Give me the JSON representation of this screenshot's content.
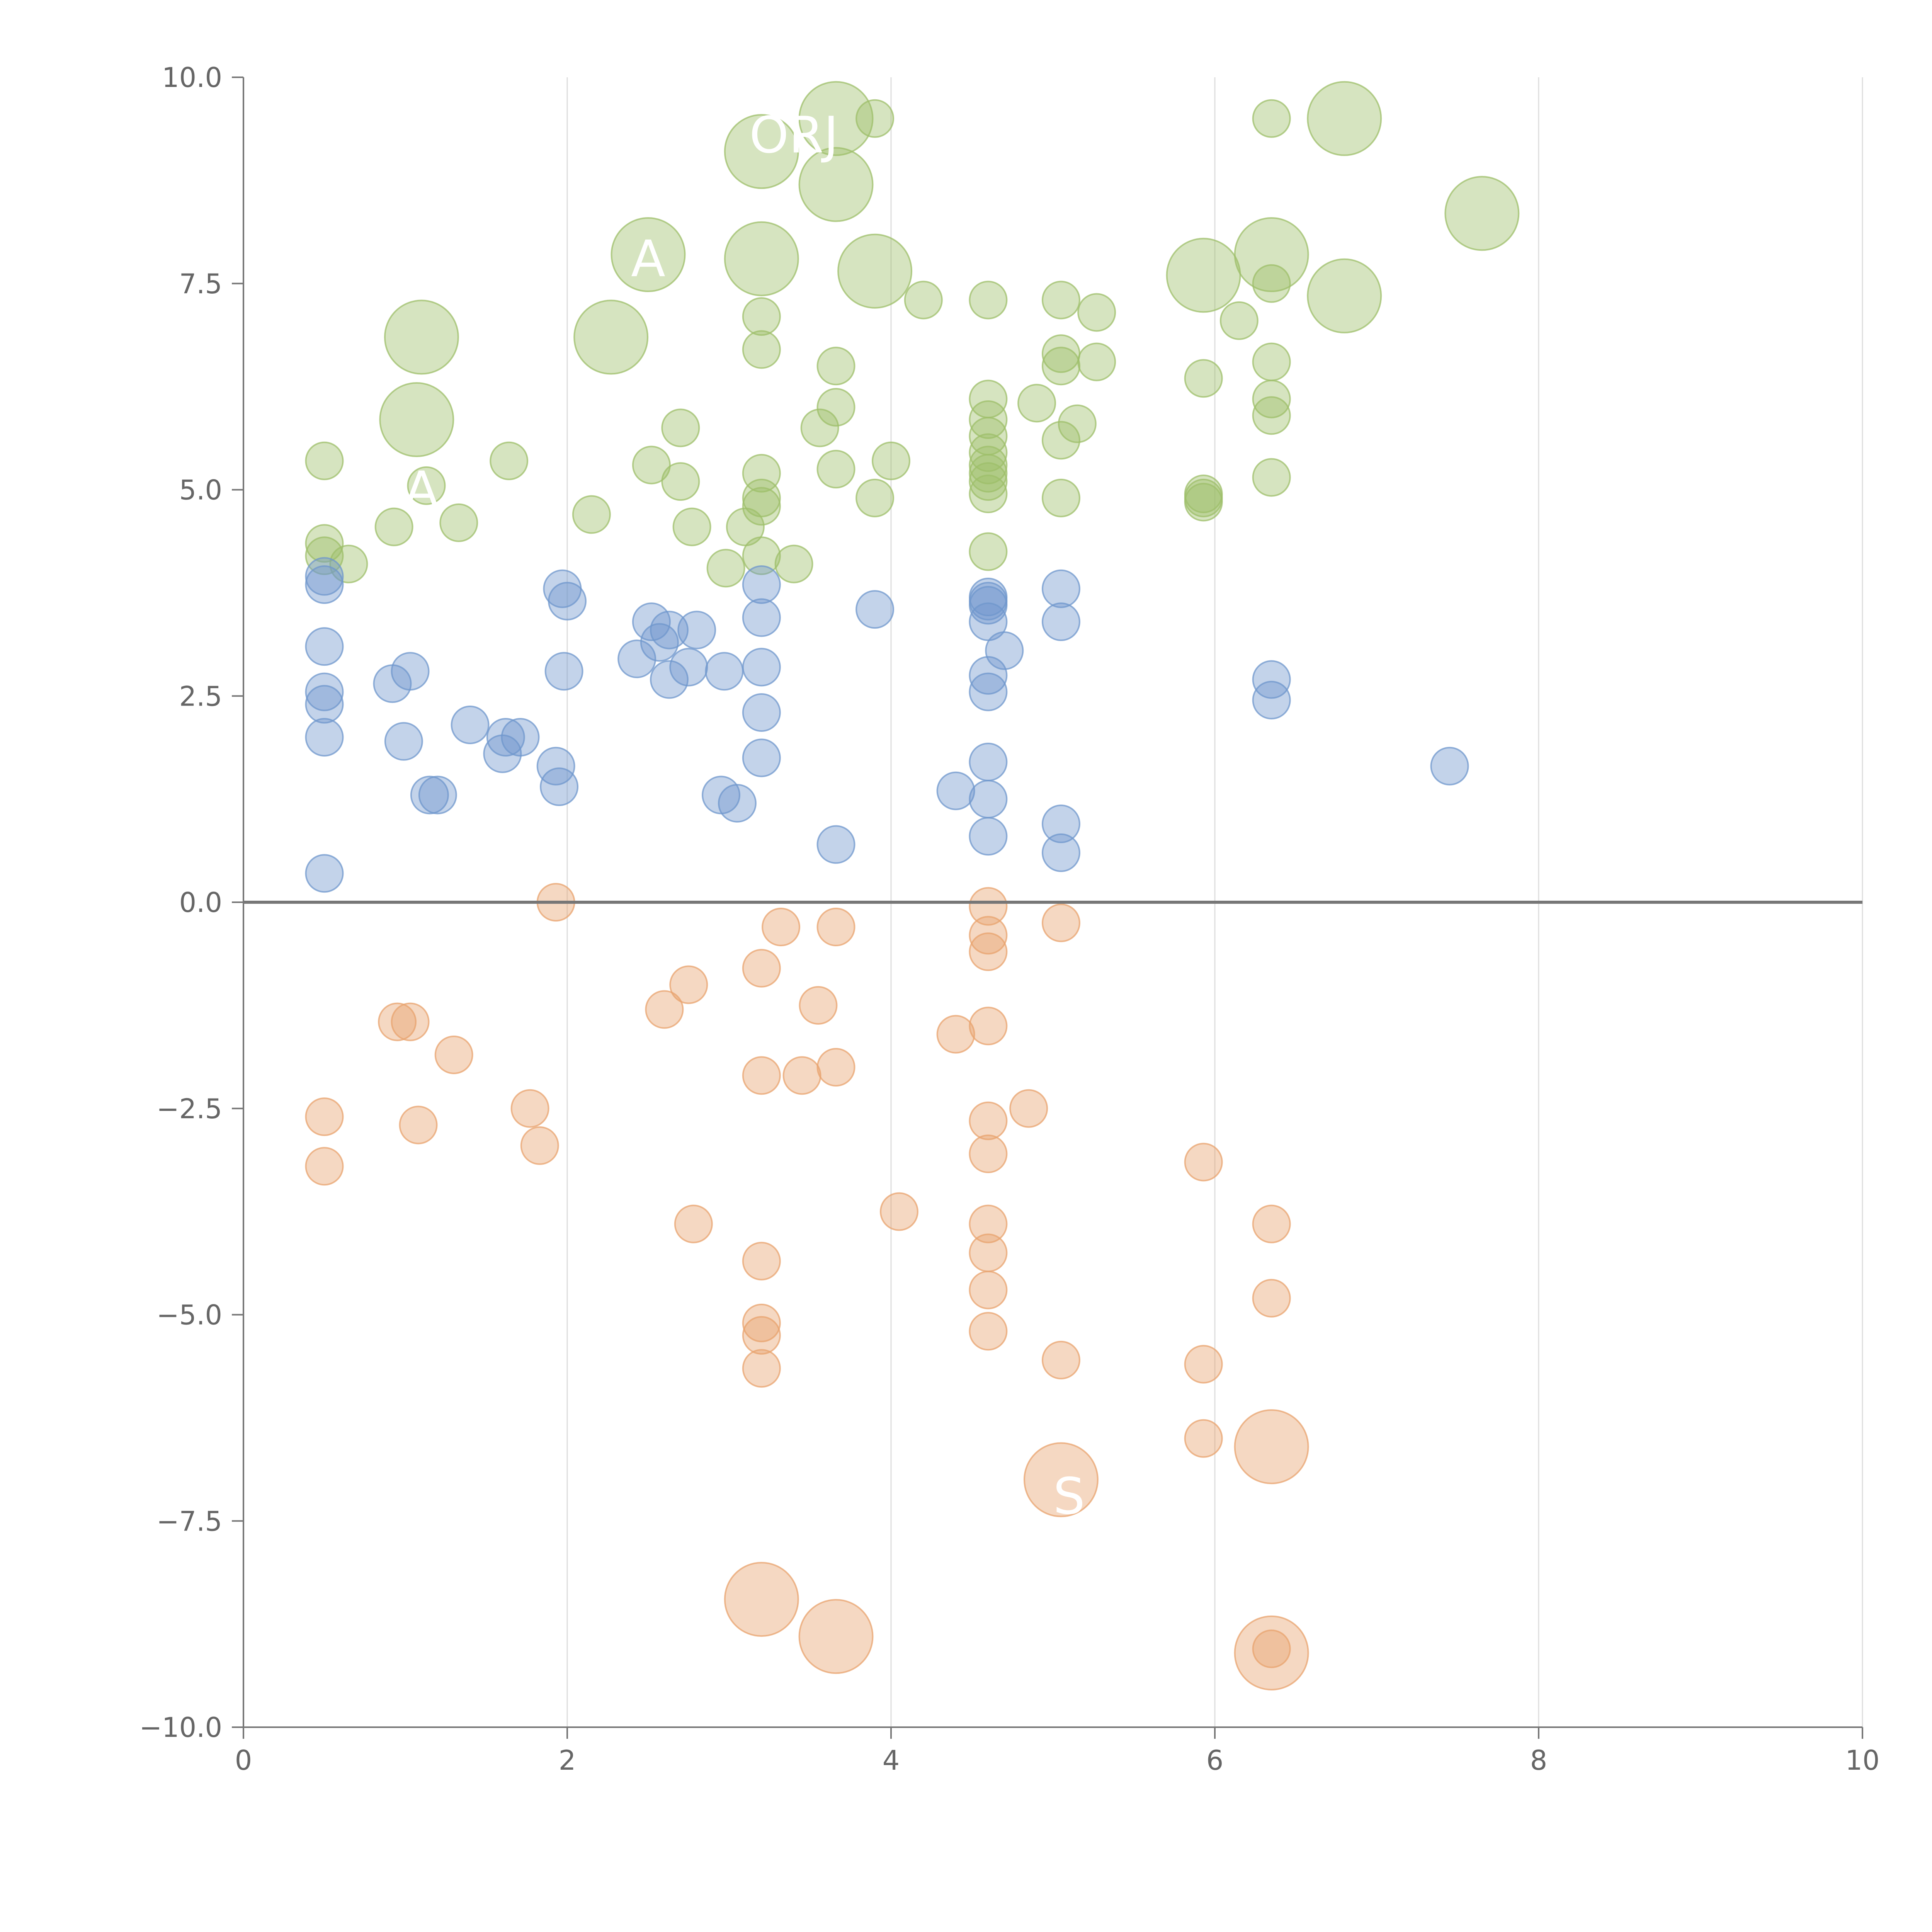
{
  "chart_data": {
    "type": "scatter",
    "title": "",
    "xlabel": "",
    "ylabel": "",
    "xlim": [
      0,
      10
    ],
    "ylim": [
      -10,
      10
    ],
    "x_ticks": [
      "0",
      "2",
      "4",
      "6",
      "8",
      "10"
    ],
    "y_ticks": [
      "10.0",
      "7.5",
      "5.0",
      "2.5",
      "0.0",
      "−2.5",
      "−5.0",
      "−7.5",
      "−10.0"
    ],
    "x_tick_values": [
      0,
      2,
      4,
      6,
      8,
      10
    ],
    "y_tick_values": [
      10,
      7.5,
      5,
      2.5,
      0,
      -2.5,
      -5,
      -7.5,
      -10
    ],
    "grid": "vertical",
    "zero_line": true,
    "series": [
      {
        "color": "#9dbf6a",
        "points": [
          [
            3.66,
            9.5,
            2
          ],
          [
            3.9,
            9.5,
            1
          ],
          [
            3.2,
            9.1,
            2
          ],
          [
            3.66,
            8.7,
            2
          ],
          [
            6.35,
            9.5,
            1
          ],
          [
            6.8,
            9.5,
            2
          ],
          [
            7.65,
            8.35,
            2
          ],
          [
            2.5,
            7.85,
            2
          ],
          [
            3.2,
            7.8,
            2
          ],
          [
            3.9,
            7.65,
            2
          ],
          [
            4.2,
            7.3,
            1
          ],
          [
            4.6,
            7.3,
            1
          ],
          [
            5.05,
            7.3,
            1
          ],
          [
            5.27,
            7.15,
            1
          ],
          [
            5.93,
            7.6,
            2
          ],
          [
            6.35,
            7.85,
            2
          ],
          [
            6.35,
            7.5,
            1
          ],
          [
            6.8,
            7.35,
            2
          ],
          [
            6.15,
            7.05,
            1
          ],
          [
            1.1,
            6.85,
            2
          ],
          [
            2.27,
            6.85,
            2
          ],
          [
            3.2,
            7.1,
            1
          ],
          [
            3.2,
            6.7,
            1
          ],
          [
            3.66,
            6.5,
            1
          ],
          [
            3.66,
            6.0,
            1
          ],
          [
            3.56,
            5.75,
            1
          ],
          [
            4.6,
            6.1,
            1
          ],
          [
            4.6,
            5.85,
            1
          ],
          [
            4.6,
            5.65,
            1
          ],
          [
            4.6,
            5.45,
            1
          ],
          [
            4.6,
            5.3,
            1
          ],
          [
            4.6,
            5.2,
            1
          ],
          [
            4.6,
            5.1,
            1
          ],
          [
            4.6,
            4.95,
            1
          ],
          [
            4.9,
            6.05,
            1
          ],
          [
            5.05,
            6.65,
            1
          ],
          [
            5.05,
            6.5,
            1
          ],
          [
            5.05,
            5.6,
            1
          ],
          [
            5.15,
            5.8,
            1
          ],
          [
            5.27,
            6.55,
            1
          ],
          [
            5.93,
            6.35,
            1
          ],
          [
            5.93,
            4.95,
            1
          ],
          [
            5.93,
            4.9,
            1
          ],
          [
            5.93,
            4.85,
            1
          ],
          [
            6.35,
            6.55,
            1
          ],
          [
            6.35,
            6.1,
            1
          ],
          [
            6.35,
            5.9,
            1
          ],
          [
            6.35,
            5.15,
            1
          ],
          [
            1.07,
            5.85,
            2
          ],
          [
            0.5,
            5.35,
            1
          ],
          [
            1.13,
            5.05,
            1
          ],
          [
            1.64,
            5.35,
            1
          ],
          [
            2.52,
            5.3,
            1
          ],
          [
            2.7,
            5.75,
            1
          ],
          [
            2.7,
            5.1,
            1
          ],
          [
            3.66,
            5.25,
            1
          ],
          [
            4.0,
            5.35,
            1
          ],
          [
            3.2,
            5.2,
            1
          ],
          [
            3.2,
            4.9,
            1
          ],
          [
            3.2,
            4.8,
            1
          ],
          [
            3.9,
            4.9,
            1
          ],
          [
            0.5,
            4.35,
            1
          ],
          [
            0.5,
            4.2,
            1
          ],
          [
            0.65,
            4.1,
            1
          ],
          [
            0.93,
            4.55,
            1
          ],
          [
            1.33,
            4.6,
            1
          ],
          [
            2.15,
            4.7,
            1
          ],
          [
            2.77,
            4.55,
            1
          ],
          [
            3.1,
            4.55,
            1
          ],
          [
            2.98,
            4.05,
            1
          ],
          [
            3.2,
            4.2,
            1
          ],
          [
            3.4,
            4.1,
            1
          ],
          [
            4.6,
            4.25,
            1
          ],
          [
            5.05,
            4.9,
            1
          ]
        ]
      },
      {
        "color": "#6f97cc",
        "points": [
          [
            0.5,
            3.95,
            1
          ],
          [
            0.5,
            3.85,
            1
          ],
          [
            0.5,
            3.1,
            1
          ],
          [
            0.5,
            2.55,
            1
          ],
          [
            0.5,
            2.4,
            1
          ],
          [
            0.5,
            2.0,
            1
          ],
          [
            0.5,
            0.35,
            1
          ],
          [
            0.92,
            2.65,
            1
          ],
          [
            1.03,
            2.8,
            1
          ],
          [
            0.99,
            1.95,
            1
          ],
          [
            1.15,
            1.3,
            1
          ],
          [
            1.2,
            1.3,
            1
          ],
          [
            1.4,
            2.15,
            1
          ],
          [
            1.6,
            1.8,
            1
          ],
          [
            1.62,
            2.0,
            1
          ],
          [
            1.71,
            2.0,
            1
          ],
          [
            1.93,
            1.65,
            1
          ],
          [
            1.95,
            1.4,
            1
          ],
          [
            1.97,
            3.8,
            1
          ],
          [
            2.0,
            3.65,
            1
          ],
          [
            1.98,
            2.8,
            1
          ],
          [
            2.43,
            2.95,
            1
          ],
          [
            2.52,
            3.4,
            1
          ],
          [
            2.57,
            3.15,
            1
          ],
          [
            2.63,
            3.3,
            1
          ],
          [
            2.63,
            2.7,
            1
          ],
          [
            2.75,
            2.85,
            1
          ],
          [
            2.8,
            3.3,
            1
          ],
          [
            2.97,
            2.8,
            1
          ],
          [
            2.95,
            1.3,
            1
          ],
          [
            3.05,
            1.2,
            1
          ],
          [
            3.2,
            3.85,
            1
          ],
          [
            3.2,
            3.45,
            1
          ],
          [
            3.2,
            2.85,
            1
          ],
          [
            3.2,
            2.3,
            1
          ],
          [
            3.2,
            1.75,
            1
          ],
          [
            3.66,
            0.7,
            1
          ],
          [
            3.9,
            3.55,
            1
          ],
          [
            4.4,
            1.35,
            1
          ],
          [
            4.6,
            3.7,
            1
          ],
          [
            4.6,
            3.65,
            1
          ],
          [
            4.6,
            3.6,
            1
          ],
          [
            4.6,
            3.4,
            1
          ],
          [
            4.6,
            2.75,
            1
          ],
          [
            4.6,
            2.55,
            1
          ],
          [
            4.6,
            1.7,
            1
          ],
          [
            4.6,
            1.25,
            1
          ],
          [
            4.6,
            0.8,
            1
          ],
          [
            4.7,
            3.05,
            1
          ],
          [
            5.05,
            3.8,
            1
          ],
          [
            5.05,
            3.4,
            1
          ],
          [
            5.05,
            0.95,
            1
          ],
          [
            5.05,
            0.6,
            1
          ],
          [
            6.35,
            2.7,
            1
          ],
          [
            6.35,
            2.45,
            1
          ],
          [
            7.45,
            1.65,
            1
          ]
        ]
      },
      {
        "color": "#e8a36e",
        "points": [
          [
            1.93,
            0.0,
            1
          ],
          [
            3.32,
            -0.3,
            1
          ],
          [
            3.66,
            -0.3,
            1
          ],
          [
            4.6,
            -0.05,
            1
          ],
          [
            4.6,
            -0.4,
            1
          ],
          [
            4.6,
            -0.6,
            1
          ],
          [
            5.05,
            -0.25,
            1
          ],
          [
            3.2,
            -0.8,
            1
          ],
          [
            2.75,
            -1.0,
            1
          ],
          [
            2.6,
            -1.3,
            1
          ],
          [
            3.55,
            -1.25,
            1
          ],
          [
            4.6,
            -1.5,
            1
          ],
          [
            4.4,
            -1.6,
            1
          ],
          [
            0.95,
            -1.45,
            1
          ],
          [
            1.03,
            -1.45,
            1
          ],
          [
            1.3,
            -1.85,
            1
          ],
          [
            3.2,
            -2.1,
            1
          ],
          [
            3.45,
            -2.1,
            1
          ],
          [
            3.66,
            -2.0,
            1
          ],
          [
            0.5,
            -2.6,
            1
          ],
          [
            0.5,
            -3.2,
            1
          ],
          [
            1.08,
            -2.7,
            1
          ],
          [
            1.77,
            -2.5,
            1
          ],
          [
            1.83,
            -2.95,
            1
          ],
          [
            4.6,
            -2.65,
            1
          ],
          [
            4.6,
            -3.05,
            1
          ],
          [
            4.85,
            -2.5,
            1
          ],
          [
            5.93,
            -3.15,
            1
          ],
          [
            2.78,
            -3.9,
            1
          ],
          [
            4.05,
            -3.75,
            1
          ],
          [
            4.6,
            -3.9,
            1
          ],
          [
            4.6,
            -4.25,
            1
          ],
          [
            4.6,
            -4.7,
            1
          ],
          [
            4.6,
            -5.2,
            1
          ],
          [
            3.2,
            -4.35,
            1
          ],
          [
            3.2,
            -5.1,
            1
          ],
          [
            3.2,
            -5.25,
            1
          ],
          [
            3.2,
            -5.65,
            1
          ],
          [
            5.05,
            -5.55,
            1
          ],
          [
            5.93,
            -5.6,
            1
          ],
          [
            5.93,
            -6.5,
            1
          ],
          [
            6.35,
            -3.9,
            1
          ],
          [
            6.35,
            -4.8,
            1
          ],
          [
            6.35,
            -6.6,
            2
          ],
          [
            5.05,
            -7.0,
            2
          ],
          [
            3.2,
            -8.45,
            2
          ],
          [
            3.66,
            -8.9,
            2
          ],
          [
            6.35,
            -9.1,
            2
          ],
          [
            6.35,
            -9.05,
            1
          ]
        ]
      }
    ],
    "annotations": [
      {
        "text": "A",
        "x": 2.5,
        "y": 7.8
      },
      {
        "text": "ORJ",
        "x": 3.4,
        "y": 9.3
      },
      {
        "text": "A",
        "x": 1.1,
        "y": 5.0
      },
      {
        "text": "S",
        "x": 5.1,
        "y": -7.2
      }
    ]
  }
}
